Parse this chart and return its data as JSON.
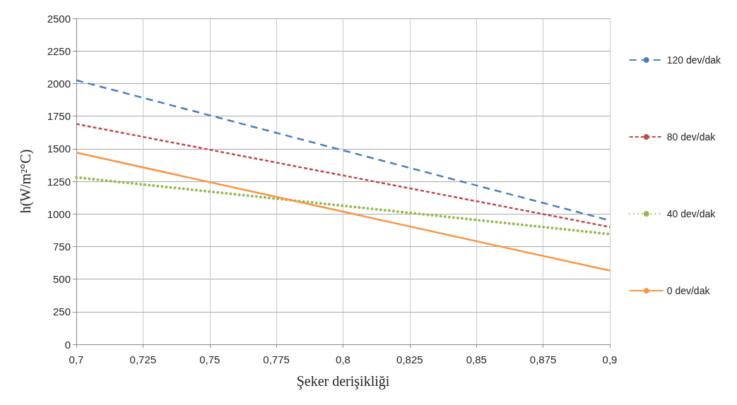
{
  "chart_data": {
    "type": "line",
    "xlabel": "Şeker derişikliği",
    "ylabel": "h(W/m²°C)",
    "xlim": [
      0.7,
      0.9
    ],
    "xticks": [
      {
        "value": 0.7,
        "label": "0,7"
      },
      {
        "value": 0.725,
        "label": "0,725"
      },
      {
        "value": 0.75,
        "label": "0,75"
      },
      {
        "value": 0.775,
        "label": "0,775"
      },
      {
        "value": 0.8,
        "label": "0,8"
      },
      {
        "value": 0.825,
        "label": "0,825"
      },
      {
        "value": 0.85,
        "label": "0,85"
      },
      {
        "value": 0.875,
        "label": "0,875"
      },
      {
        "value": 0.9,
        "label": "0,9"
      }
    ],
    "ylim": [
      0,
      2500
    ],
    "yticks": [
      0,
      250,
      500,
      750,
      1000,
      1250,
      1500,
      1750,
      2000,
      2250,
      2500
    ],
    "x": [
      0.7,
      0.9
    ],
    "series": [
      {
        "name": "120 dev/dak",
        "color": "#4a7ebb",
        "values": [
          2025,
          950
        ],
        "line_style": "dashed"
      },
      {
        "name": "80 dev/dak",
        "color": "#be4b48",
        "values": [
          1690,
          900
        ],
        "line_style": "dashed"
      },
      {
        "name": "40 dev/dak",
        "color": "#98b954",
        "values": [
          1280,
          845
        ],
        "line_style": "dotted"
      },
      {
        "name": "0 dev/dak",
        "color": "#f79646",
        "values": [
          1470,
          565
        ],
        "line_style": "solid"
      }
    ],
    "grid": true,
    "legend": "right",
    "marker": "none"
  }
}
